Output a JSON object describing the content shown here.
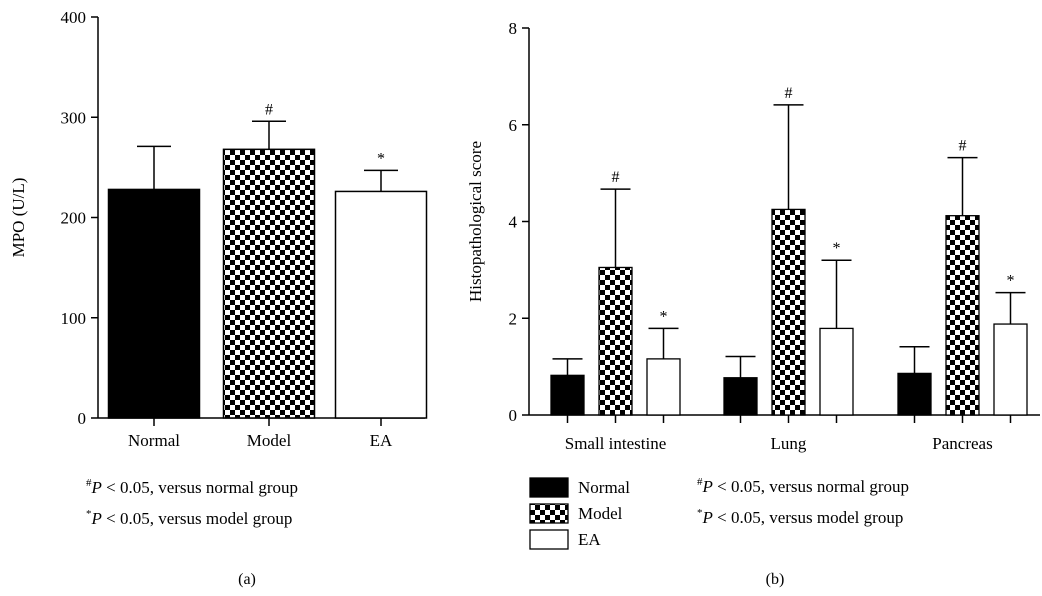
{
  "chart_data": [
    {
      "panel_label": "(a)",
      "type": "bar",
      "ylabel": "MPO (U/L)",
      "ylim": [
        0,
        400
      ],
      "yticks": [
        0,
        100,
        200,
        300,
        400
      ],
      "categories": [
        "Normal",
        "Model",
        "EA"
      ],
      "values": [
        228,
        268,
        226
      ],
      "errors": [
        43,
        28,
        21
      ],
      "markers": [
        "",
        "#",
        "*"
      ],
      "fills": [
        "solid",
        "checker",
        "empty"
      ],
      "notes": [
        {
          "sym": "#",
          "var": "P",
          "text": " < 0.05, versus normal group"
        },
        {
          "sym": "*",
          "var": "P",
          "text": " < 0.05, versus model group"
        }
      ]
    },
    {
      "panel_label": "(b)",
      "type": "bar",
      "ylabel": "Histopathological score",
      "ylim": [
        0,
        8
      ],
      "yticks": [
        0,
        2,
        4,
        6,
        8
      ],
      "categories": [
        "Small intestine",
        "Lung",
        "Pancreas"
      ],
      "series": [
        {
          "name": "Normal",
          "fill": "solid",
          "values": [
            0.82,
            0.77,
            0.86
          ],
          "errors": [
            0.34,
            0.44,
            0.55
          ],
          "markers": [
            "",
            "",
            ""
          ]
        },
        {
          "name": "Model",
          "fill": "checker",
          "values": [
            3.05,
            4.25,
            4.12
          ],
          "errors": [
            1.62,
            2.16,
            1.2
          ],
          "markers": [
            "#",
            "#",
            "#"
          ]
        },
        {
          "name": "EA",
          "fill": "empty",
          "values": [
            1.16,
            1.79,
            1.88
          ],
          "errors": [
            0.63,
            1.41,
            0.65
          ],
          "markers": [
            "*",
            "*",
            "*"
          ]
        }
      ],
      "legend_position": "bottom-left",
      "notes": [
        {
          "sym": "#",
          "var": "P",
          "text": " < 0.05, versus normal group"
        },
        {
          "sym": "*",
          "var": "P",
          "text": " < 0.05, versus model group"
        }
      ]
    }
  ]
}
